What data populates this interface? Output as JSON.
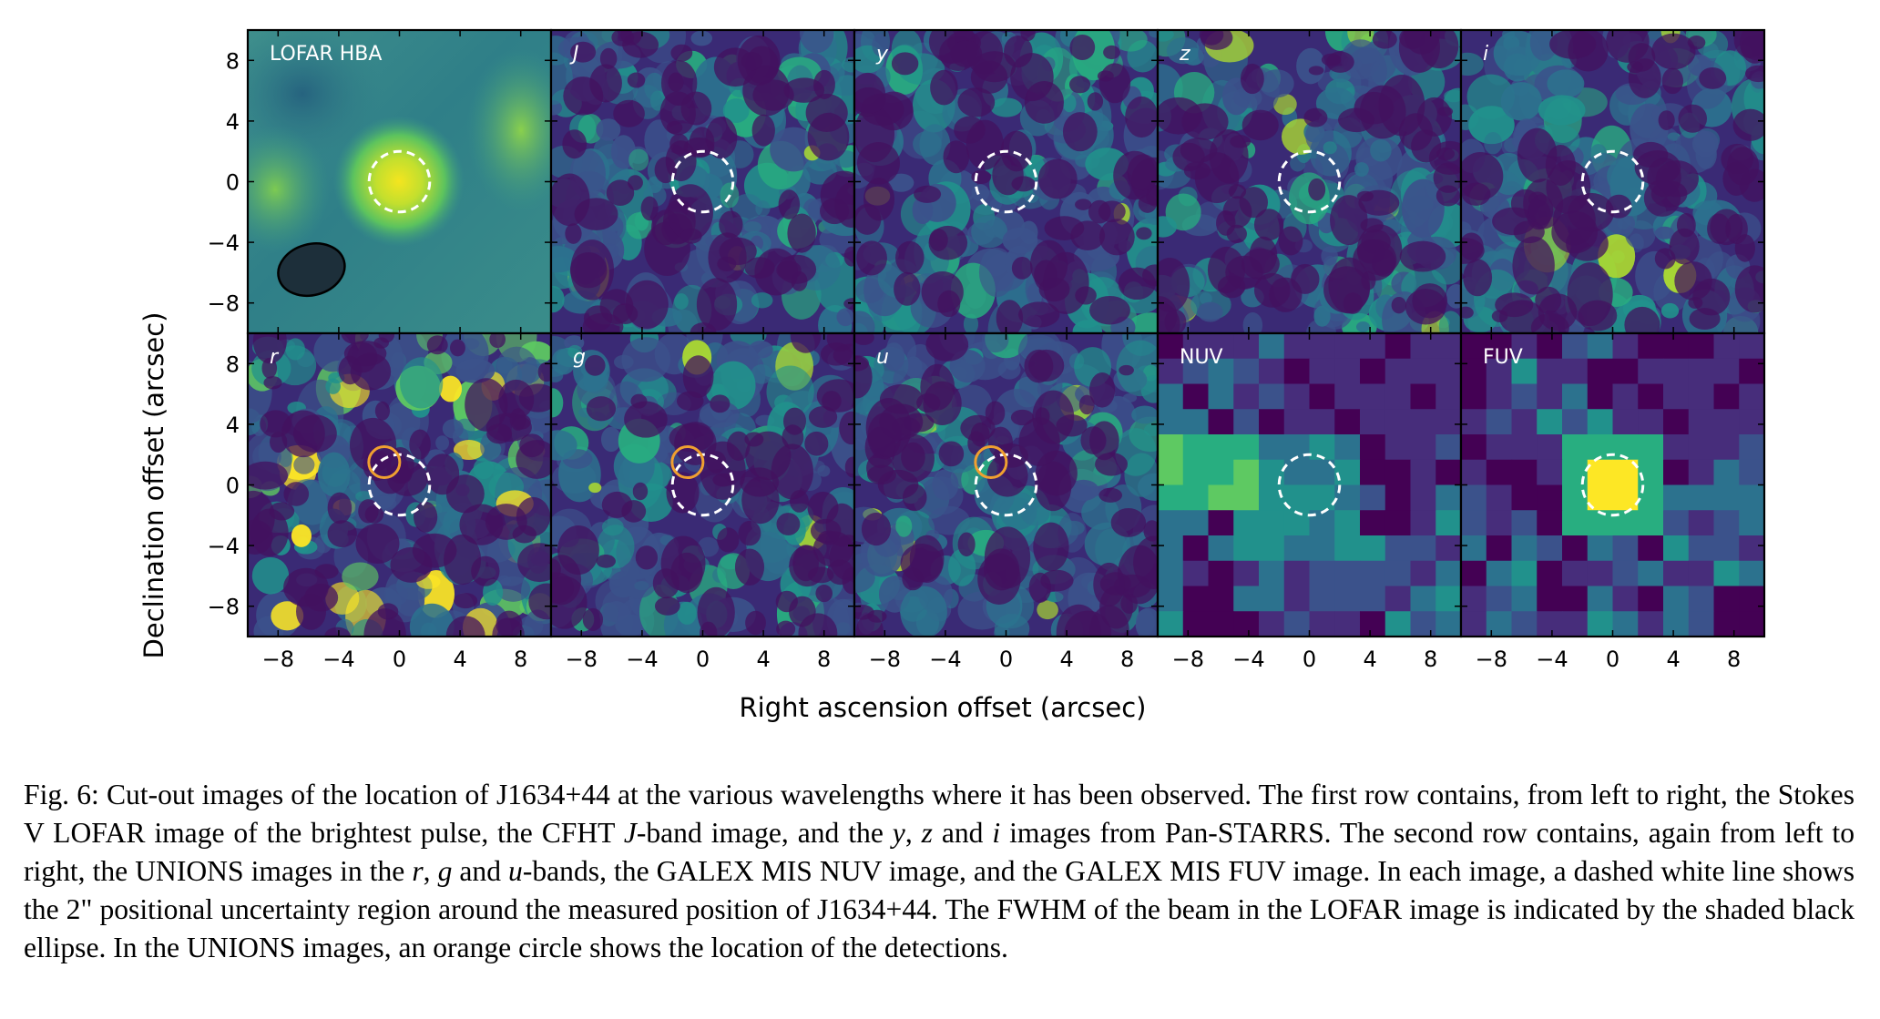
{
  "figure": {
    "xlabel": "Right ascension offset (arcsec)",
    "ylabel": "Declination offset (arcsec)",
    "x_ticks": [
      "−8",
      "−4",
      "0",
      "4",
      "8"
    ],
    "y_ticks": [
      "8",
      "4",
      "0",
      "−4",
      "−8"
    ],
    "panels": [
      {
        "label": "LOFAR HBA",
        "italic": false,
        "row": 0,
        "col": 0,
        "style": "lofar",
        "beam_ellipse": true,
        "orange_circle": false
      },
      {
        "label": "J",
        "italic": true,
        "row": 0,
        "col": 1,
        "style": "noise",
        "beam_ellipse": false,
        "orange_circle": false
      },
      {
        "label": "y",
        "italic": true,
        "row": 0,
        "col": 2,
        "style": "noise",
        "beam_ellipse": false,
        "orange_circle": false
      },
      {
        "label": "z",
        "italic": true,
        "row": 0,
        "col": 3,
        "style": "noise",
        "beam_ellipse": false,
        "orange_circle": false
      },
      {
        "label": "i",
        "italic": true,
        "row": 0,
        "col": 4,
        "style": "noise",
        "beam_ellipse": false,
        "orange_circle": false
      },
      {
        "label": "r",
        "italic": true,
        "row": 1,
        "col": 0,
        "style": "bright-noise",
        "beam_ellipse": false,
        "orange_circle": true
      },
      {
        "label": "g",
        "italic": true,
        "row": 1,
        "col": 1,
        "style": "noise",
        "beam_ellipse": false,
        "orange_circle": true
      },
      {
        "label": "u",
        "italic": true,
        "row": 1,
        "col": 2,
        "style": "noise",
        "beam_ellipse": false,
        "orange_circle": true
      },
      {
        "label": "NUV",
        "italic": false,
        "row": 1,
        "col": 3,
        "style": "pixel-nuv",
        "beam_ellipse": false,
        "orange_circle": false
      },
      {
        "label": "FUV",
        "italic": false,
        "row": 1,
        "col": 4,
        "style": "pixel-fuv",
        "beam_ellipse": false,
        "orange_circle": false
      }
    ],
    "uncertainty_radius_arcsec": 2,
    "detection_offset_arcsec": [
      -1,
      1.5
    ],
    "colors": {
      "uncertainty_circle": "#ffffff",
      "detection_circle": "#f0a030",
      "beam_ellipse": "#1d2f3a"
    }
  },
  "caption": {
    "p1": "Fig. 6: Cut-out images of the location of J1634+44 at the various wavelengths where it has been observed. The first row contains, from left to right, the Stokes V LOFAR image of the brightest pulse, the CFHT ",
    "j": "J",
    "p2": "-band image, and the ",
    "y": "y",
    "p3": ", ",
    "z": "z",
    "p4": " and ",
    "i": "i",
    "p5": " images from Pan-STARRS. The second row contains, again from left to right, the UNIONS images in the ",
    "r": "r",
    "p6": ", ",
    "g": "g",
    "p7": " and ",
    "u": "u",
    "p8": "-bands, the GALEX MIS NUV image, and the GALEX MIS FUV image. In each image, a dashed white line shows the 2\" positional uncertainty region around the measured position of J1634+44. The FWHM of the beam in the LOFAR image is indicated by the shaded black ellipse. In the UNIONS images, an orange circle shows the location of the detections."
  }
}
